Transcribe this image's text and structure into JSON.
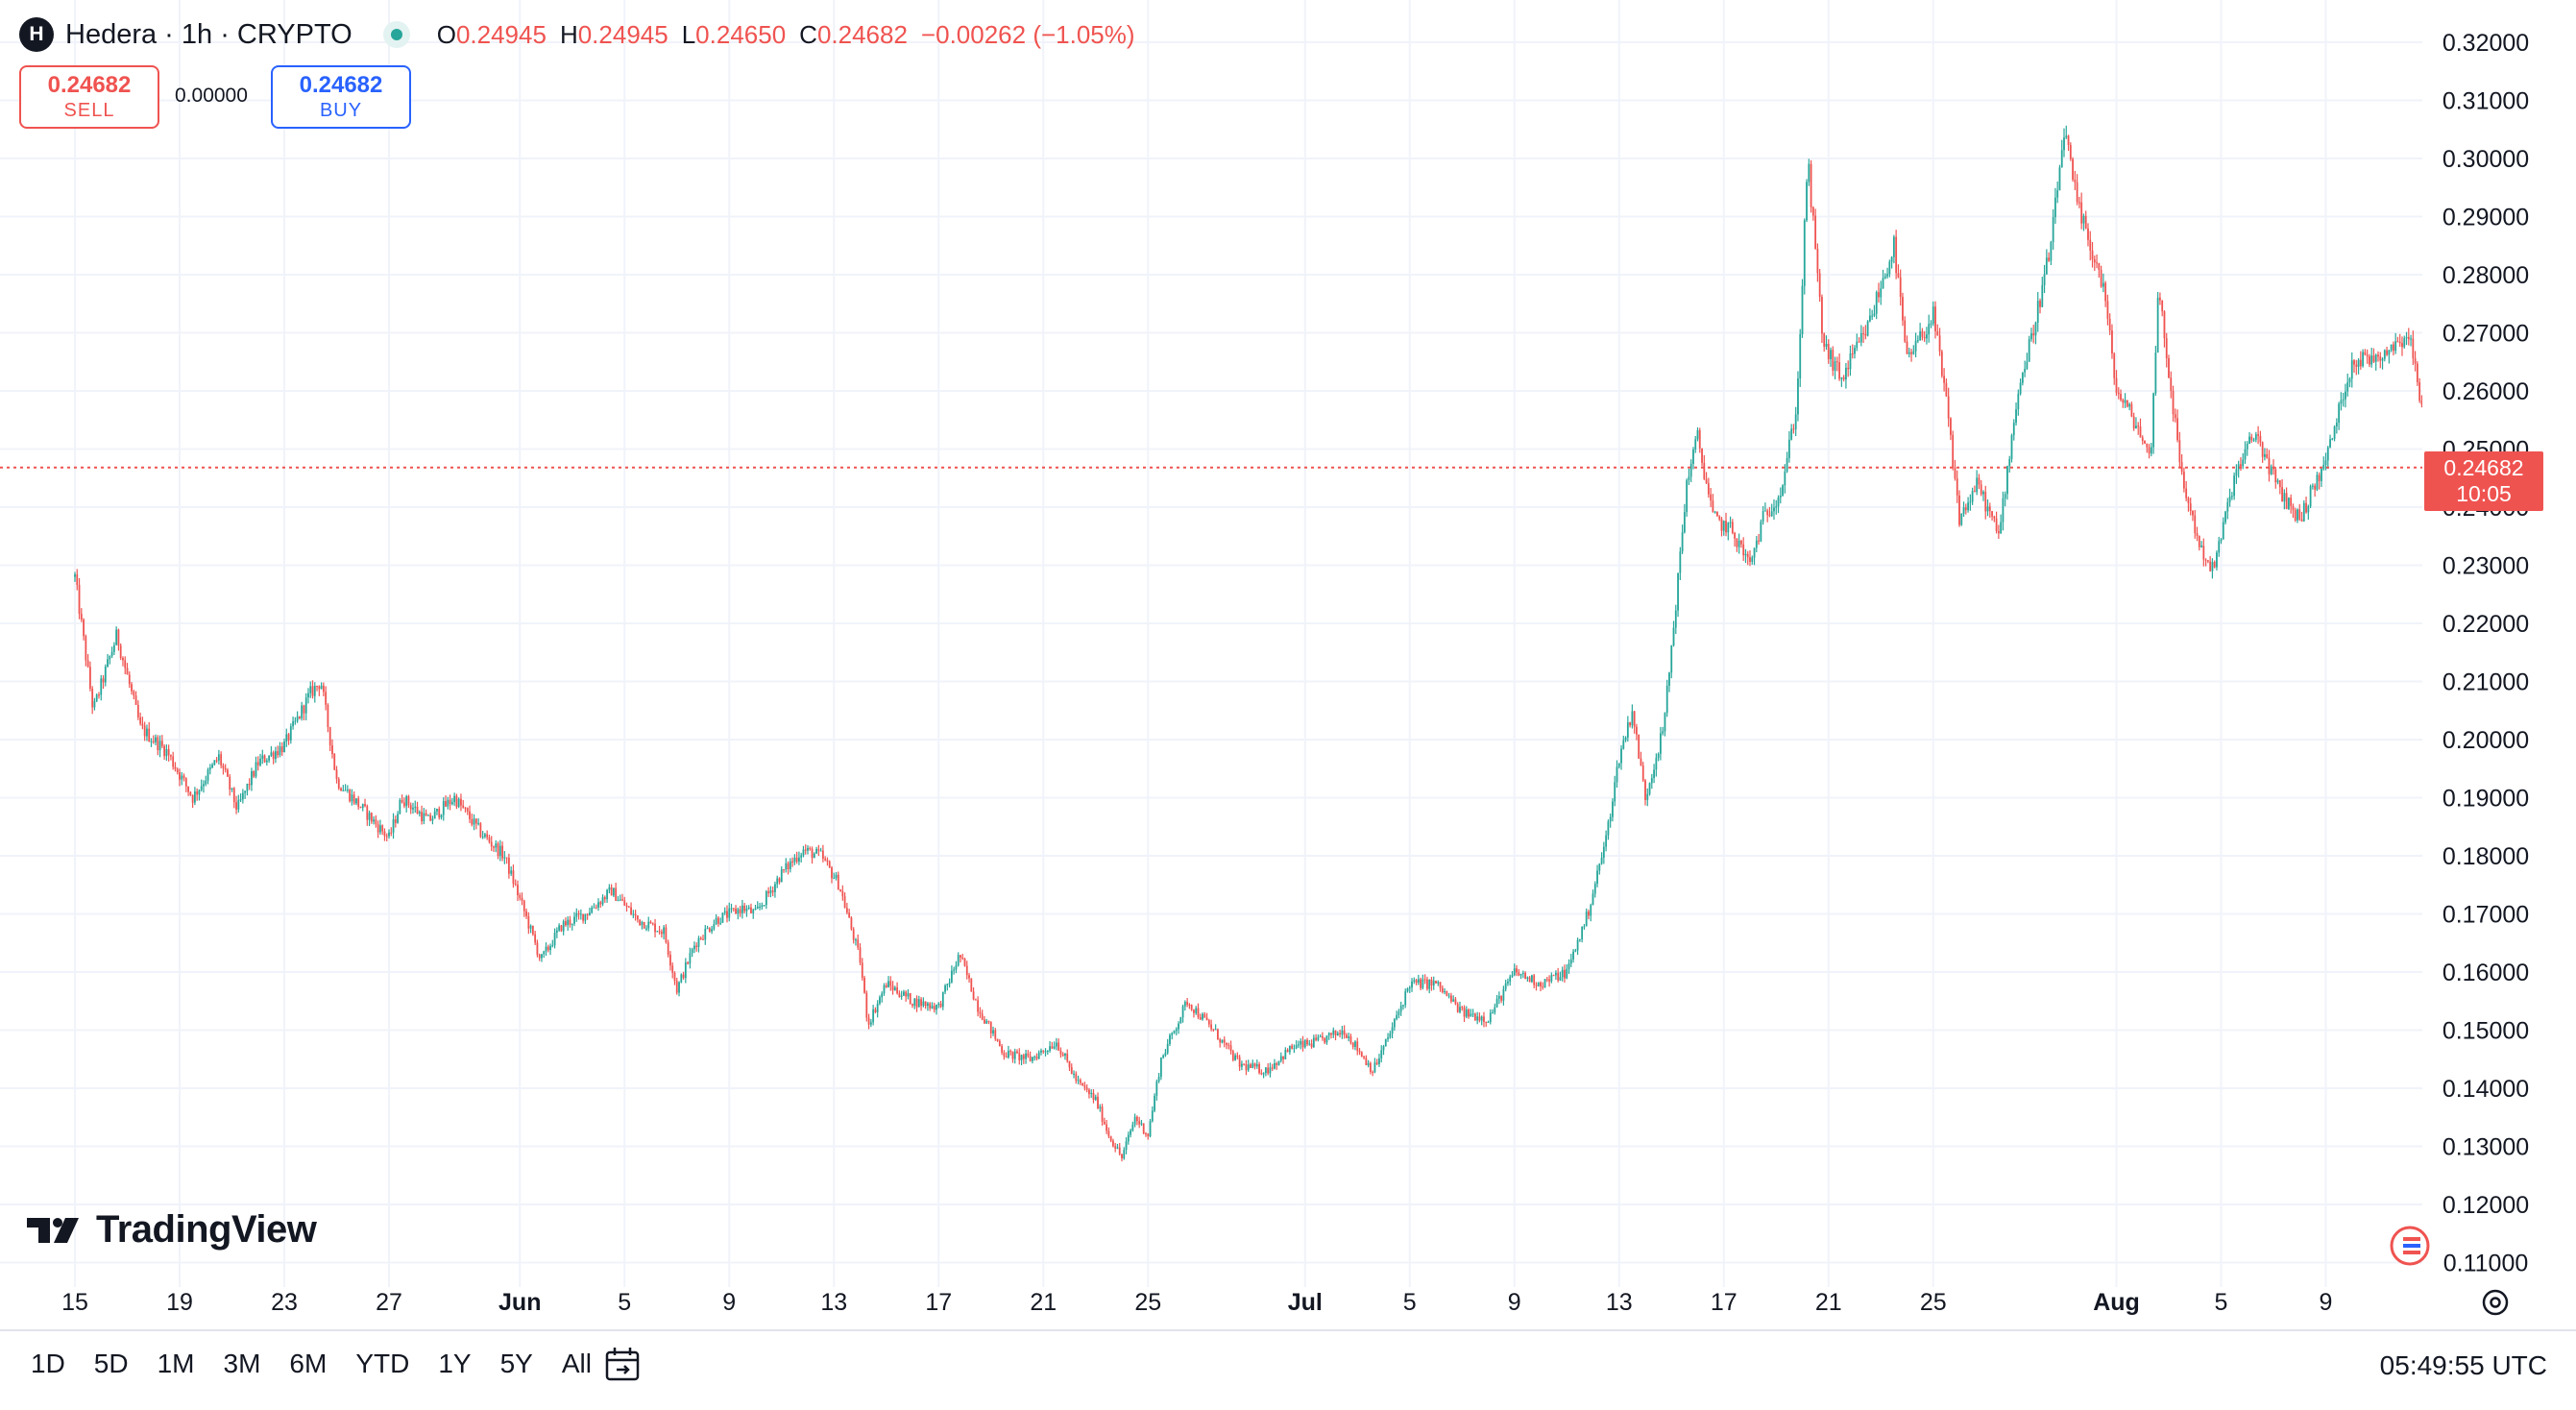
{
  "header": {
    "symbol_icon": "H",
    "symbol_title": "Hedera · 1h · CRYPTO",
    "ohlc": {
      "o_label": "O",
      "o_value": "0.24945",
      "h_label": "H",
      "h_value": "0.24945",
      "l_label": "L",
      "l_value": "0.24650",
      "c_label": "C",
      "c_value": "0.24682",
      "change": "−0.00262 (−1.05%)"
    }
  },
  "trade": {
    "sell_price": "0.24682",
    "sell_label": "SELL",
    "spread": "0.00000",
    "buy_price": "0.24682",
    "buy_label": "BUY"
  },
  "logo_text": "TradingView",
  "current_price_badge": {
    "price": "0.24682",
    "countdown": "10:05"
  },
  "range_buttons": [
    "1D",
    "5D",
    "1M",
    "3M",
    "6M",
    "YTD",
    "1Y",
    "5Y",
    "All"
  ],
  "clock": "05:49:55 UTC",
  "colors": {
    "up": "#26a69a",
    "down": "#ef5350",
    "grid": "#f0f3fa",
    "text": "#131722"
  },
  "icons": [
    "symbol-logo-icon",
    "live-status-icon",
    "tradingview-logo-icon",
    "goto-date-icon",
    "chart-settings-icon",
    "flag-icon"
  ],
  "chart_data": {
    "type": "candlestick",
    "interval": "1h",
    "y_axis": {
      "range": [
        0.105,
        0.325
      ],
      "ticks": [
        "0.32000",
        "0.31000",
        "0.30000",
        "0.29000",
        "0.28000",
        "0.27000",
        "0.26000",
        "0.25000",
        "0.24000",
        "0.23000",
        "0.22000",
        "0.21000",
        "0.20000",
        "0.19000",
        "0.18000",
        "0.17000",
        "0.16000",
        "0.15000",
        "0.14000",
        "0.13000",
        "0.12000",
        "0.11000"
      ]
    },
    "x_axis": {
      "range": [
        "May 14",
        "Aug 12"
      ],
      "ticks": [
        {
          "label": "15",
          "day": 1,
          "bold": false
        },
        {
          "label": "19",
          "day": 5,
          "bold": false
        },
        {
          "label": "23",
          "day": 9,
          "bold": false
        },
        {
          "label": "27",
          "day": 13,
          "bold": false
        },
        {
          "label": "Jun",
          "day": 18,
          "bold": true
        },
        {
          "label": "5",
          "day": 22,
          "bold": false
        },
        {
          "label": "9",
          "day": 26,
          "bold": false
        },
        {
          "label": "13",
          "day": 30,
          "bold": false
        },
        {
          "label": "17",
          "day": 34,
          "bold": false
        },
        {
          "label": "21",
          "day": 38,
          "bold": false
        },
        {
          "label": "25",
          "day": 42,
          "bold": false
        },
        {
          "label": "Jul",
          "day": 48,
          "bold": true
        },
        {
          "label": "5",
          "day": 52,
          "bold": false
        },
        {
          "label": "9",
          "day": 56,
          "bold": false
        },
        {
          "label": "13",
          "day": 60,
          "bold": false
        },
        {
          "label": "17",
          "day": 64,
          "bold": false
        },
        {
          "label": "21",
          "day": 68,
          "bold": false
        },
        {
          "label": "25",
          "day": 72,
          "bold": false
        },
        {
          "label": "Aug",
          "day": 79,
          "bold": true
        },
        {
          "label": "5",
          "day": 83,
          "bold": false
        },
        {
          "label": "9",
          "day": 87,
          "bold": false
        }
      ]
    },
    "current_price": 0.24682,
    "price_path": [
      [
        0,
        0.228
      ],
      [
        0.7,
        0.205
      ],
      [
        1.6,
        0.218
      ],
      [
        2.5,
        0.202
      ],
      [
        3.5,
        0.198
      ],
      [
        4.5,
        0.19
      ],
      [
        5.5,
        0.197
      ],
      [
        6.2,
        0.188
      ],
      [
        7,
        0.196
      ],
      [
        8,
        0.199
      ],
      [
        9,
        0.208
      ],
      [
        9.4,
        0.21
      ],
      [
        10,
        0.193
      ],
      [
        11,
        0.188
      ],
      [
        12,
        0.183
      ],
      [
        12.5,
        0.19
      ],
      [
        13.5,
        0.186
      ],
      [
        14.5,
        0.19
      ],
      [
        15.5,
        0.184
      ],
      [
        16.4,
        0.18
      ],
      [
        17.2,
        0.17
      ],
      [
        17.8,
        0.162
      ],
      [
        18.6,
        0.168
      ],
      [
        19.5,
        0.17
      ],
      [
        20.5,
        0.174
      ],
      [
        21.5,
        0.169
      ],
      [
        22.5,
        0.167
      ],
      [
        23,
        0.157
      ],
      [
        23.7,
        0.165
      ],
      [
        24.5,
        0.169
      ],
      [
        25.5,
        0.171
      ],
      [
        26,
        0.17
      ],
      [
        27,
        0.177
      ],
      [
        27.8,
        0.181
      ],
      [
        28.5,
        0.18
      ],
      [
        29.2,
        0.175
      ],
      [
        30,
        0.162
      ],
      [
        30.3,
        0.151
      ],
      [
        31,
        0.158
      ],
      [
        32,
        0.155
      ],
      [
        33,
        0.154
      ],
      [
        33.8,
        0.163
      ],
      [
        34.5,
        0.154
      ],
      [
        35.5,
        0.146
      ],
      [
        36.5,
        0.145
      ],
      [
        37.5,
        0.148
      ],
      [
        38.3,
        0.141
      ],
      [
        39,
        0.138
      ],
      [
        39.5,
        0.132
      ],
      [
        40,
        0.128
      ],
      [
        40.5,
        0.135
      ],
      [
        41,
        0.132
      ],
      [
        41.5,
        0.145
      ],
      [
        42.5,
        0.155
      ],
      [
        43.5,
        0.15
      ],
      [
        44.5,
        0.144
      ],
      [
        45.5,
        0.143
      ],
      [
        46.5,
        0.147
      ],
      [
        47.5,
        0.148
      ],
      [
        48.5,
        0.15
      ],
      [
        49.6,
        0.143
      ],
      [
        50.3,
        0.15
      ],
      [
        51,
        0.158
      ],
      [
        52,
        0.158
      ],
      [
        53,
        0.153
      ],
      [
        54,
        0.152
      ],
      [
        55,
        0.16
      ],
      [
        56,
        0.158
      ],
      [
        57,
        0.16
      ],
      [
        57.8,
        0.17
      ],
      [
        58.5,
        0.183
      ],
      [
        59,
        0.197
      ],
      [
        59.5,
        0.205
      ],
      [
        60,
        0.19
      ],
      [
        60.7,
        0.202
      ],
      [
        61.2,
        0.225
      ],
      [
        61.6,
        0.245
      ],
      [
        62,
        0.252
      ],
      [
        62.6,
        0.238
      ],
      [
        63.3,
        0.236
      ],
      [
        64,
        0.23
      ],
      [
        64.5,
        0.238
      ],
      [
        65.2,
        0.243
      ],
      [
        65.8,
        0.258
      ],
      [
        66.2,
        0.3
      ],
      [
        66.8,
        0.268
      ],
      [
        67.5,
        0.262
      ],
      [
        68.5,
        0.271
      ],
      [
        69.5,
        0.285
      ],
      [
        70,
        0.265
      ],
      [
        71,
        0.273
      ],
      [
        71.5,
        0.258
      ],
      [
        72,
        0.238
      ],
      [
        72.7,
        0.244
      ],
      [
        73.5,
        0.235
      ],
      [
        74.2,
        0.259
      ],
      [
        74.8,
        0.27
      ],
      [
        75.5,
        0.285
      ],
      [
        76,
        0.305
      ],
      [
        76.5,
        0.292
      ],
      [
        77.5,
        0.278
      ],
      [
        78,
        0.26
      ],
      [
        78.8,
        0.254
      ],
      [
        79.3,
        0.248
      ],
      [
        79.6,
        0.278
      ],
      [
        80.5,
        0.245
      ],
      [
        81.2,
        0.233
      ],
      [
        81.7,
        0.229
      ],
      [
        82.5,
        0.245
      ],
      [
        83.3,
        0.253
      ],
      [
        84.2,
        0.243
      ],
      [
        85,
        0.238
      ],
      [
        86,
        0.248
      ],
      [
        87,
        0.265
      ],
      [
        88,
        0.266
      ],
      [
        89.2,
        0.27
      ],
      [
        89.6,
        0.258
      ],
      [
        90.2,
        0.268
      ],
      [
        90.8,
        0.252
      ],
      [
        91.5,
        0.24682
      ]
    ]
  }
}
